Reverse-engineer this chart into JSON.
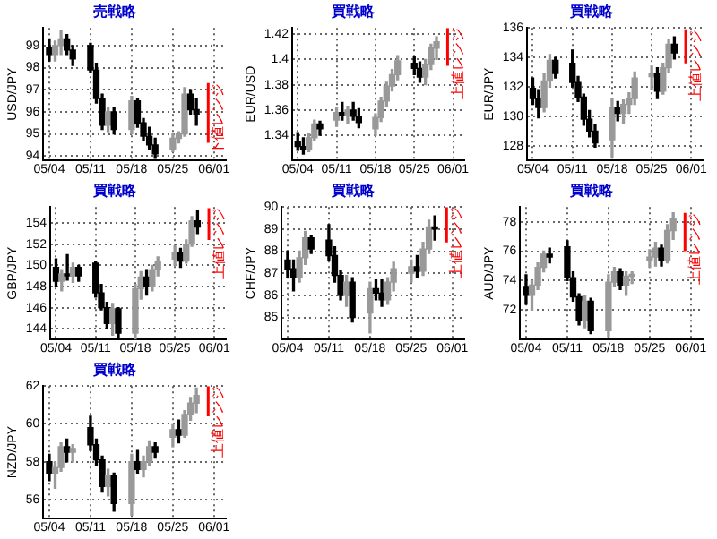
{
  "chart_data": [
    {
      "type": "candlestick",
      "title": "売戦略",
      "ylabel": "USD/JPY",
      "x": [
        "--05-04",
        "--05-05",
        "--05-06",
        "--05-07",
        "--05-08",
        "--05-11",
        "--05-12",
        "--05-13",
        "--05-14",
        "--05-15",
        "--05-18",
        "--05-19",
        "--05-20",
        "--05-21",
        "--05-22",
        "--05-25",
        "--05-26",
        "--05-27",
        "--05-28",
        "--05-29"
      ],
      "xlim": [
        "--05-03",
        "--06-03"
      ],
      "xticks": [
        {
          "value": "--05-04",
          "label": "05/04"
        },
        {
          "value": "--05-11",
          "label": "05/11"
        },
        {
          "value": "--05-18",
          "label": "05/18"
        },
        {
          "value": "--05-25",
          "label": "05/25"
        },
        {
          "value": "--06-01",
          "label": "06/01"
        }
      ],
      "ylim": [
        93.8,
        99.8
      ],
      "yticks": [
        94,
        95,
        96,
        97,
        98,
        99
      ],
      "grid": true,
      "ohlc": [
        [
          98.9,
          99.3,
          98.3,
          98.6
        ],
        [
          98.6,
          99.2,
          98.3,
          99.0
        ],
        [
          99.0,
          99.7,
          98.6,
          99.3
        ],
        [
          99.3,
          99.5,
          98.6,
          98.8
        ],
        [
          98.8,
          99.0,
          98.1,
          98.4
        ],
        [
          99.0,
          99.1,
          97.8,
          97.9
        ],
        [
          97.9,
          98.2,
          96.4,
          96.6
        ],
        [
          96.6,
          96.8,
          95.2,
          95.4
        ],
        [
          95.4,
          96.2,
          95.1,
          96.0
        ],
        [
          96.0,
          96.2,
          95.0,
          95.2
        ],
        [
          95.2,
          96.7,
          95.0,
          96.5
        ],
        [
          96.5,
          96.6,
          95.3,
          95.5
        ],
        [
          95.5,
          95.7,
          94.7,
          94.9
        ],
        [
          94.9,
          95.3,
          94.3,
          94.5
        ],
        [
          94.5,
          94.8,
          93.9,
          94.1
        ],
        [
          94.3,
          95.0,
          94.2,
          94.8
        ],
        [
          94.8,
          95.1,
          94.6,
          95.0
        ],
        [
          95.0,
          97.1,
          94.9,
          96.8
        ],
        [
          96.8,
          97.0,
          95.9,
          96.1
        ],
        [
          96.1,
          96.6,
          95.4,
          95.9
        ]
      ],
      "colors": [
        "#000000",
        "#999999",
        "#999999",
        "#000000",
        "#000000",
        "#000000",
        "#000000",
        "#000000",
        "#999999",
        "#000000",
        "#999999",
        "#000000",
        "#000000",
        "#000000",
        "#000000",
        "#999999",
        "#999999",
        "#999999",
        "#000000",
        "#000000"
      ],
      "series": [
        {
          "type": "line",
          "x": [
            "--05-31",
            "--05-31"
          ],
          "values": [
            94.6,
            97.3
          ],
          "color": "#ff0000"
        }
      ],
      "annotations": [
        {
          "text": "下値レンジ",
          "x": "--05-31",
          "y": 97.3
        }
      ]
    },
    {
      "type": "candlestick",
      "title": "買戦略",
      "ylabel": "EUR/USD",
      "x": [
        "--05-04",
        "--05-05",
        "--05-06",
        "--05-07",
        "--05-08",
        "--05-11",
        "--05-12",
        "--05-13",
        "--05-14",
        "--05-15",
        "--05-18",
        "--05-19",
        "--05-20",
        "--05-21",
        "--05-22",
        "--05-25",
        "--05-26",
        "--05-27",
        "--05-28",
        "--05-29"
      ],
      "xlim": [
        "--05-03",
        "--06-03"
      ],
      "xticks": [
        {
          "value": "--05-04",
          "label": "05/04"
        },
        {
          "value": "--05-11",
          "label": "05/11"
        },
        {
          "value": "--05-18",
          "label": "05/18"
        },
        {
          "value": "--05-25",
          "label": "05/25"
        },
        {
          "value": "--06-01",
          "label": "06/01"
        }
      ],
      "ylim": [
        1.32,
        1.425
      ],
      "yticks": [
        1.34,
        1.36,
        1.38,
        1.4,
        1.42
      ],
      "grid": true,
      "ohlc": [
        [
          1.335,
          1.342,
          1.328,
          1.331
        ],
        [
          1.331,
          1.338,
          1.325,
          1.329
        ],
        [
          1.329,
          1.341,
          1.327,
          1.338
        ],
        [
          1.338,
          1.352,
          1.336,
          1.349
        ],
        [
          1.349,
          1.351,
          1.34,
          1.345
        ],
        [
          1.352,
          1.362,
          1.347,
          1.358
        ],
        [
          1.358,
          1.366,
          1.352,
          1.356
        ],
        [
          1.356,
          1.363,
          1.349,
          1.36
        ],
        [
          1.36,
          1.366,
          1.352,
          1.355
        ],
        [
          1.355,
          1.361,
          1.346,
          1.35
        ],
        [
          1.345,
          1.357,
          1.34,
          1.354
        ],
        [
          1.354,
          1.37,
          1.351,
          1.367
        ],
        [
          1.367,
          1.382,
          1.363,
          1.379
        ],
        [
          1.379,
          1.392,
          1.375,
          1.388
        ],
        [
          1.388,
          1.403,
          1.384,
          1.399
        ],
        [
          1.397,
          1.402,
          1.388,
          1.393
        ],
        [
          1.393,
          1.398,
          1.382,
          1.386
        ],
        [
          1.386,
          1.4,
          1.38,
          1.396
        ],
        [
          1.396,
          1.412,
          1.392,
          1.409
        ],
        [
          1.409,
          1.418,
          1.4,
          1.414
        ]
      ],
      "colors": [
        "#000000",
        "#000000",
        "#999999",
        "#999999",
        "#000000",
        "#999999",
        "#000000",
        "#999999",
        "#000000",
        "#000000",
        "#999999",
        "#999999",
        "#999999",
        "#999999",
        "#999999",
        "#000000",
        "#000000",
        "#999999",
        "#999999",
        "#999999"
      ],
      "series": [
        {
          "type": "line",
          "x": [
            "--05-31",
            "--05-31"
          ],
          "values": [
            1.395,
            1.425
          ],
          "color": "#ff0000"
        }
      ],
      "annotations": [
        {
          "text": "上値レンジ",
          "x": "--05-31",
          "y": 1.425
        }
      ]
    },
    {
      "type": "candlestick",
      "title": "買戦略",
      "ylabel": "EUR/JPY",
      "x": [
        "--05-04",
        "--05-05",
        "--05-06",
        "--05-07",
        "--05-08",
        "--05-11",
        "--05-12",
        "--05-13",
        "--05-14",
        "--05-15",
        "--05-18",
        "--05-19",
        "--05-20",
        "--05-21",
        "--05-22",
        "--05-25",
        "--05-26",
        "--05-27",
        "--05-28",
        "--05-29"
      ],
      "xlim": [
        "--05-03",
        "--06-03"
      ],
      "xticks": [
        {
          "value": "--05-04",
          "label": "05/04"
        },
        {
          "value": "--05-11",
          "label": "05/11"
        },
        {
          "value": "--05-18",
          "label": "05/18"
        },
        {
          "value": "--05-25",
          "label": "05/25"
        },
        {
          "value": "--06-01",
          "label": "06/01"
        }
      ],
      "ylim": [
        127,
        136
      ],
      "yticks": [
        128,
        130,
        132,
        134,
        136
      ],
      "grid": true,
      "ohlc": [
        [
          131.9,
          132.6,
          130.8,
          131.2
        ],
        [
          131.2,
          131.8,
          129.9,
          130.6
        ],
        [
          130.6,
          132.9,
          130.3,
          132.4
        ],
        [
          132.4,
          134.2,
          132.0,
          133.8
        ],
        [
          133.8,
          134.0,
          132.6,
          132.9
        ],
        [
          133.6,
          134.5,
          132.0,
          132.3
        ],
        [
          132.3,
          132.7,
          131.0,
          131.3
        ],
        [
          131.3,
          131.5,
          129.4,
          129.8
        ],
        [
          129.8,
          130.4,
          128.6,
          129.0
        ],
        [
          129.0,
          129.4,
          127.9,
          128.2
        ],
        [
          128.4,
          131.2,
          127.2,
          130.6
        ],
        [
          130.6,
          131.0,
          129.7,
          130.2
        ],
        [
          130.2,
          131.1,
          129.5,
          130.8
        ],
        [
          130.8,
          131.6,
          130.2,
          131.2
        ],
        [
          131.2,
          133.0,
          130.8,
          132.6
        ],
        [
          132.7,
          133.4,
          131.8,
          132.9
        ],
        [
          132.9,
          133.3,
          131.2,
          131.7
        ],
        [
          131.7,
          133.6,
          131.5,
          133.3
        ],
        [
          133.3,
          135.2,
          133.0,
          134.9
        ],
        [
          134.9,
          135.4,
          133.9,
          134.3
        ]
      ],
      "colors": [
        "#000000",
        "#000000",
        "#999999",
        "#999999",
        "#000000",
        "#000000",
        "#000000",
        "#000000",
        "#000000",
        "#000000",
        "#999999",
        "#000000",
        "#999999",
        "#999999",
        "#999999",
        "#999999",
        "#000000",
        "#999999",
        "#999999",
        "#000000"
      ],
      "series": [
        {
          "type": "line",
          "x": [
            "--05-31",
            "--05-31"
          ],
          "values": [
            133.6,
            135.9
          ],
          "color": "#ff0000"
        }
      ],
      "annotations": [
        {
          "text": "上値レンジ",
          "x": "--05-31",
          "y": 135.9
        }
      ]
    },
    {
      "type": "candlestick",
      "title": "買戦略",
      "ylabel": "GBP/JPY",
      "x": [
        "--05-04",
        "--05-05",
        "--05-06",
        "--05-07",
        "--05-08",
        "--05-11",
        "--05-12",
        "--05-13",
        "--05-14",
        "--05-15",
        "--05-18",
        "--05-19",
        "--05-20",
        "--05-21",
        "--05-22",
        "--05-25",
        "--05-26",
        "--05-27",
        "--05-28",
        "--05-29"
      ],
      "xlim": [
        "--05-03",
        "--06-03"
      ],
      "xticks": [
        {
          "value": "--05-04",
          "label": "05/04"
        },
        {
          "value": "--05-11",
          "label": "05/11"
        },
        {
          "value": "--05-18",
          "label": "05/18"
        },
        {
          "value": "--05-25",
          "label": "05/25"
        },
        {
          "value": "--06-01",
          "label": "06/01"
        }
      ],
      "ylim": [
        143,
        155.5
      ],
      "yticks": [
        144,
        146,
        148,
        150,
        152,
        154
      ],
      "grid": true,
      "ohlc": [
        [
          149.8,
          150.6,
          148.0,
          148.5
        ],
        [
          148.5,
          149.6,
          147.6,
          149.2
        ],
        [
          149.2,
          151.0,
          148.6,
          149.0
        ],
        [
          149.0,
          150.2,
          148.4,
          149.8
        ],
        [
          149.8,
          150.0,
          148.5,
          149.0
        ],
        [
          150.2,
          150.4,
          147.0,
          147.4
        ],
        [
          147.4,
          148.2,
          145.8,
          146.0
        ],
        [
          146.0,
          146.5,
          144.0,
          144.5
        ],
        [
          144.5,
          146.4,
          143.4,
          145.9
        ],
        [
          145.9,
          146.0,
          143.2,
          143.6
        ],
        [
          143.6,
          148.2,
          143.0,
          147.8
        ],
        [
          147.8,
          149.4,
          146.8,
          148.9
        ],
        [
          148.9,
          149.6,
          147.2,
          148.0
        ],
        [
          148.0,
          150.0,
          147.6,
          149.6
        ],
        [
          149.6,
          150.8,
          149.0,
          150.4
        ],
        [
          150.6,
          151.8,
          150.0,
          151.2
        ],
        [
          151.2,
          151.6,
          149.8,
          150.4
        ],
        [
          150.4,
          152.4,
          150.2,
          152.0
        ],
        [
          152.0,
          154.6,
          151.8,
          154.2
        ],
        [
          154.2,
          155.2,
          153.0,
          153.6
        ]
      ],
      "colors": [
        "#000000",
        "#999999",
        "#000000",
        "#999999",
        "#000000",
        "#000000",
        "#000000",
        "#000000",
        "#999999",
        "#000000",
        "#999999",
        "#999999",
        "#000000",
        "#999999",
        "#999999",
        "#999999",
        "#000000",
        "#999999",
        "#999999",
        "#000000"
      ],
      "series": [
        {
          "type": "line",
          "x": [
            "--05-31",
            "--05-31"
          ],
          "values": [
            152.4,
            155.4
          ],
          "color": "#ff0000"
        }
      ],
      "annotations": [
        {
          "text": "上値レンジ",
          "x": "--05-31",
          "y": 155.4
        }
      ]
    },
    {
      "type": "candlestick",
      "title": "買戦略",
      "ylabel": "CHF/JPY",
      "x": [
        "--05-04",
        "--05-05",
        "--05-06",
        "--05-07",
        "--05-08",
        "--05-11",
        "--05-12",
        "--05-13",
        "--05-14",
        "--05-15",
        "--05-18",
        "--05-19",
        "--05-20",
        "--05-21",
        "--05-22",
        "--05-25",
        "--05-26",
        "--05-27",
        "--05-28",
        "--05-29"
      ],
      "xlim": [
        "--05-03",
        "--06-03"
      ],
      "xticks": [
        {
          "value": "--05-04",
          "label": "05/04"
        },
        {
          "value": "--05-11",
          "label": "05/11"
        },
        {
          "value": "--05-18",
          "label": "05/18"
        },
        {
          "value": "--05-25",
          "label": "05/25"
        },
        {
          "value": "--06-01",
          "label": "06/01"
        }
      ],
      "ylim": [
        84,
        90
      ],
      "yticks": [
        85,
        86,
        87,
        88,
        89,
        90
      ],
      "grid": true,
      "ohlc": [
        [
          87.6,
          88.0,
          86.8,
          87.2
        ],
        [
          87.2,
          87.6,
          86.2,
          86.8
        ],
        [
          86.8,
          88.0,
          86.6,
          87.7
        ],
        [
          87.7,
          88.9,
          87.4,
          88.6
        ],
        [
          88.6,
          88.7,
          87.9,
          88.1
        ],
        [
          88.5,
          89.2,
          87.6,
          87.8
        ],
        [
          87.8,
          88.2,
          86.6,
          86.9
        ],
        [
          86.9,
          87.1,
          85.8,
          86.0
        ],
        [
          86.0,
          86.9,
          85.5,
          86.6
        ],
        [
          86.6,
          86.8,
          84.8,
          85.0
        ],
        [
          85.2,
          86.6,
          84.3,
          86.3
        ],
        [
          86.3,
          86.7,
          85.8,
          86.1
        ],
        [
          86.1,
          86.7,
          85.5,
          85.8
        ],
        [
          85.8,
          86.8,
          85.6,
          86.6
        ],
        [
          86.6,
          87.5,
          86.2,
          87.2
        ],
        [
          87.0,
          87.6,
          86.6,
          87.3
        ],
        [
          87.3,
          87.8,
          86.8,
          87.1
        ],
        [
          87.1,
          88.4,
          86.9,
          88.1
        ],
        [
          88.1,
          89.4,
          87.9,
          89.1
        ],
        [
          89.1,
          89.6,
          88.5,
          89.0
        ]
      ],
      "colors": [
        "#000000",
        "#000000",
        "#999999",
        "#999999",
        "#000000",
        "#000000",
        "#000000",
        "#000000",
        "#999999",
        "#000000",
        "#999999",
        "#000000",
        "#000000",
        "#999999",
        "#999999",
        "#999999",
        "#000000",
        "#999999",
        "#999999",
        "#000000"
      ],
      "series": [
        {
          "type": "line",
          "x": [
            "--05-31",
            "--05-31"
          ],
          "values": [
            88.4,
            90.0
          ],
          "color": "#ff0000"
        }
      ],
      "annotations": [
        {
          "text": "上値レンジ",
          "x": "--05-31",
          "y": 90.0
        }
      ]
    },
    {
      "type": "candlestick",
      "title": "買戦略",
      "ylabel": "AUD/JPY",
      "x": [
        "--05-04",
        "--05-05",
        "--05-06",
        "--05-07",
        "--05-08",
        "--05-11",
        "--05-12",
        "--05-13",
        "--05-14",
        "--05-15",
        "--05-18",
        "--05-19",
        "--05-20",
        "--05-21",
        "--05-22",
        "--05-25",
        "--05-26",
        "--05-27",
        "--05-28",
        "--05-29"
      ],
      "xlim": [
        "--05-03",
        "--06-03"
      ],
      "xticks": [
        {
          "value": "--05-04",
          "label": "05/04"
        },
        {
          "value": "--05-11",
          "label": "05/11"
        },
        {
          "value": "--05-18",
          "label": "05/18"
        },
        {
          "value": "--05-25",
          "label": "05/25"
        },
        {
          "value": "--06-01",
          "label": "06/01"
        }
      ],
      "ylim": [
        70,
        79
      ],
      "yticks": [
        72,
        74,
        76,
        78
      ],
      "grid": true,
      "ohlc": [
        [
          73.6,
          74.4,
          72.4,
          73.0
        ],
        [
          73.0,
          74.0,
          72.0,
          73.7
        ],
        [
          73.7,
          75.2,
          73.4,
          74.9
        ],
        [
          74.9,
          76.0,
          74.6,
          75.8
        ],
        [
          75.8,
          76.2,
          75.2,
          75.6
        ],
        [
          76.3,
          76.7,
          74.0,
          74.2
        ],
        [
          74.2,
          74.6,
          72.6,
          72.9
        ],
        [
          72.9,
          73.1,
          71.0,
          71.3
        ],
        [
          71.3,
          73.0,
          70.8,
          72.6
        ],
        [
          72.6,
          72.8,
          70.4,
          70.6
        ],
        [
          70.6,
          74.4,
          70.2,
          73.9
        ],
        [
          73.9,
          74.9,
          73.6,
          74.6
        ],
        [
          74.6,
          74.8,
          73.4,
          73.7
        ],
        [
          73.7,
          74.6,
          73.0,
          74.3
        ],
        [
          74.3,
          74.6,
          73.8,
          74.4
        ],
        [
          75.4,
          76.1,
          74.9,
          75.6
        ],
        [
          75.6,
          76.6,
          75.0,
          76.2
        ],
        [
          76.2,
          76.4,
          75.0,
          75.4
        ],
        [
          75.4,
          77.8,
          75.2,
          77.4
        ],
        [
          77.4,
          78.6,
          76.8,
          78.2
        ]
      ],
      "colors": [
        "#000000",
        "#999999",
        "#999999",
        "#999999",
        "#000000",
        "#000000",
        "#000000",
        "#000000",
        "#999999",
        "#000000",
        "#999999",
        "#999999",
        "#000000",
        "#999999",
        "#999999",
        "#999999",
        "#999999",
        "#000000",
        "#999999",
        "#999999"
      ],
      "series": [
        {
          "type": "line",
          "x": [
            "--05-31",
            "--05-31"
          ],
          "values": [
            76.0,
            78.6
          ],
          "color": "#ff0000"
        }
      ],
      "annotations": [
        {
          "text": "上値レンジ",
          "x": "--05-31",
          "y": 78.6
        }
      ]
    },
    {
      "type": "candlestick",
      "title": "買戦略",
      "ylabel": "NZD/JPY",
      "x": [
        "--05-04",
        "--05-05",
        "--05-06",
        "--05-07",
        "--05-08",
        "--05-11",
        "--05-12",
        "--05-13",
        "--05-14",
        "--05-15",
        "--05-18",
        "--05-19",
        "--05-20",
        "--05-21",
        "--05-22",
        "--05-25",
        "--05-26",
        "--05-27",
        "--05-28",
        "--05-29"
      ],
      "xlim": [
        "--05-03",
        "--06-03"
      ],
      "xticks": [
        {
          "value": "--05-04",
          "label": "05/04"
        },
        {
          "value": "--05-11",
          "label": "05/11"
        },
        {
          "value": "--05-18",
          "label": "05/18"
        },
        {
          "value": "--05-25",
          "label": "05/25"
        },
        {
          "value": "--06-01",
          "label": "06/01"
        }
      ],
      "ylim": [
        55,
        62
      ],
      "yticks": [
        56,
        58,
        60,
        62
      ],
      "grid": true,
      "ohlc": [
        [
          58.0,
          58.4,
          57.0,
          57.4
        ],
        [
          57.4,
          58.0,
          56.6,
          57.7
        ],
        [
          57.7,
          59.0,
          57.5,
          58.8
        ],
        [
          58.8,
          59.2,
          58.0,
          58.5
        ],
        [
          58.5,
          58.9,
          58.0,
          58.7
        ],
        [
          59.8,
          60.4,
          58.6,
          58.9
        ],
        [
          58.9,
          59.2,
          57.8,
          58.1
        ],
        [
          58.1,
          58.3,
          56.4,
          56.7
        ],
        [
          56.7,
          57.6,
          56.2,
          57.3
        ],
        [
          57.3,
          57.4,
          55.4,
          55.8
        ],
        [
          55.8,
          58.4,
          55.2,
          58.0
        ],
        [
          58.0,
          58.6,
          57.4,
          57.6
        ],
        [
          57.6,
          58.3,
          57.2,
          58.0
        ],
        [
          58.0,
          59.1,
          57.8,
          58.8
        ],
        [
          58.8,
          59.0,
          58.2,
          58.5
        ],
        [
          59.3,
          60.0,
          58.8,
          59.7
        ],
        [
          59.7,
          60.2,
          59.0,
          59.4
        ],
        [
          59.4,
          60.7,
          59.3,
          60.5
        ],
        [
          60.5,
          61.4,
          60.2,
          61.1
        ],
        [
          61.1,
          61.9,
          60.6,
          61.5
        ]
      ],
      "colors": [
        "#000000",
        "#999999",
        "#999999",
        "#000000",
        "#999999",
        "#000000",
        "#000000",
        "#000000",
        "#999999",
        "#000000",
        "#999999",
        "#000000",
        "#999999",
        "#999999",
        "#000000",
        "#999999",
        "#000000",
        "#999999",
        "#999999",
        "#999999"
      ],
      "series": [
        {
          "type": "line",
          "x": [
            "--05-31",
            "--05-31"
          ],
          "values": [
            60.4,
            62.0
          ],
          "color": "#ff0000"
        }
      ],
      "annotations": [
        {
          "text": "上値レンジ",
          "x": "--05-31",
          "y": 62.0
        }
      ]
    }
  ]
}
